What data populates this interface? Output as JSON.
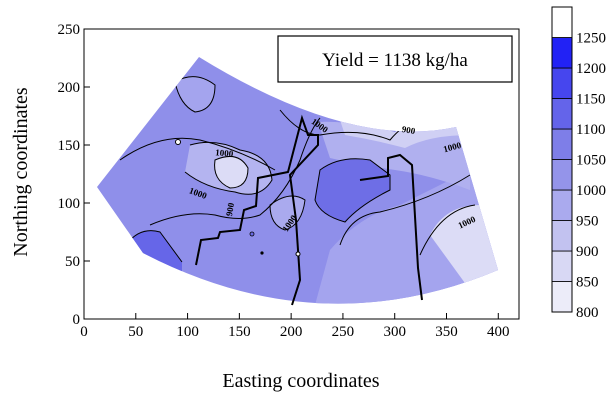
{
  "chart_data": {
    "type": "heatmap",
    "subtype": "filled-contour",
    "xlabel": "Easting coordinates",
    "ylabel": "Northing coordinates",
    "xlim": [
      0,
      420
    ],
    "ylim": [
      0,
      250
    ],
    "xticks": [
      0,
      50,
      100,
      150,
      200,
      250,
      300,
      350,
      400
    ],
    "yticks": [
      0,
      50,
      100,
      150,
      200,
      250
    ],
    "annotation": "Yield = 1138 kg/ha",
    "contour_labels": [
      "1000",
      "900",
      "1000",
      "1000",
      "1000",
      "900",
      "1000",
      "1000"
    ],
    "colorbar": {
      "levels": [
        800,
        850,
        900,
        950,
        1000,
        1050,
        1100,
        1150,
        1200,
        1250
      ],
      "tick_labels": [
        "800",
        "850",
        "900",
        "950",
        "1000",
        "1050",
        "1100",
        "1150",
        "1200",
        "1250"
      ],
      "colors": [
        "#ececf9",
        "#d8d8f4",
        "#c2c2f0",
        "#aaaaee",
        "#9494ea",
        "#7e7ee8",
        "#6464ea",
        "#4646ee",
        "#2222f5",
        "#ffffff"
      ]
    },
    "grid": false,
    "legend": "colorbar-right"
  }
}
